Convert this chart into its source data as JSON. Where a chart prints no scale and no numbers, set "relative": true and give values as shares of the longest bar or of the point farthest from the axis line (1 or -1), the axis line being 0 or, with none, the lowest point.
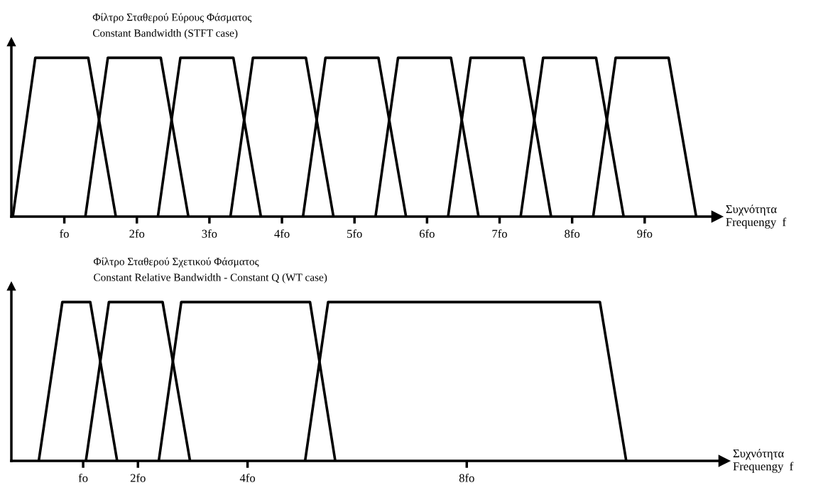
{
  "chart_data": [
    {
      "type": "line",
      "title": "Φίλτρο Σταθερού Εύρους Φάσματος",
      "subtitle": "Constant Bandwidth (STFT case)",
      "xlabel": "Συχνότητα\nFrequengy  f",
      "relative": true,
      "tick_labels": "x",
      "grid": false,
      "legend": false,
      "marker": "none",
      "line_style": "solid",
      "xlim": [
        0.27,
        10.0
      ],
      "xticks": [
        {
          "value": 1,
          "label": "fo"
        },
        {
          "value": 2,
          "label": "2fo"
        },
        {
          "value": 3,
          "label": "3fo"
        },
        {
          "value": 4,
          "label": "4fo"
        },
        {
          "value": 5,
          "label": "5fo"
        },
        {
          "value": 6,
          "label": "6fo"
        },
        {
          "value": 7,
          "label": "7fo"
        },
        {
          "value": 8,
          "label": "8fo"
        },
        {
          "value": 9,
          "label": "9fo"
        }
      ],
      "series": [
        {
          "color": "#000000",
          "x": [
            0.29,
            0.6,
            1.33,
            1.71
          ],
          "values": [
            0,
            1,
            1,
            0
          ]
        },
        {
          "color": "#000000",
          "x": [
            1.29,
            1.6,
            2.33,
            2.71
          ],
          "values": [
            0,
            1,
            1,
            0
          ]
        },
        {
          "color": "#000000",
          "x": [
            2.29,
            2.6,
            3.33,
            3.71
          ],
          "values": [
            0,
            1,
            1,
            0
          ]
        },
        {
          "color": "#000000",
          "x": [
            3.29,
            3.6,
            4.33,
            4.71
          ],
          "values": [
            0,
            1,
            1,
            0
          ]
        },
        {
          "color": "#000000",
          "x": [
            4.29,
            4.6,
            5.33,
            5.71
          ],
          "values": [
            0,
            1,
            1,
            0
          ]
        },
        {
          "color": "#000000",
          "x": [
            5.29,
            5.6,
            6.33,
            6.71
          ],
          "values": [
            0,
            1,
            1,
            0
          ]
        },
        {
          "color": "#000000",
          "x": [
            6.29,
            6.6,
            7.33,
            7.71
          ],
          "values": [
            0,
            1,
            1,
            0
          ]
        },
        {
          "color": "#000000",
          "x": [
            7.29,
            7.6,
            8.33,
            8.71
          ],
          "values": [
            0,
            1,
            1,
            0
          ]
        },
        {
          "color": "#000000",
          "x": [
            8.29,
            8.6,
            9.33,
            9.71
          ],
          "values": [
            0,
            1,
            1,
            0
          ]
        }
      ]
    },
    {
      "type": "line",
      "title": "Φίλτρο Σταθερού Σχετικού Φάσματος",
      "subtitle": "Constant Relative Bandwidth - Constant Q (WT case)",
      "xlabel": "Συχνότητα\nFrequengy  f",
      "relative": true,
      "tick_labels": "x",
      "grid": false,
      "legend": false,
      "marker": "none",
      "line_style": "solid",
      "xlim": [
        -0.31,
        12.7
      ],
      "xticks": [
        {
          "value": 1,
          "label": "fo"
        },
        {
          "value": 2,
          "label": "2fo"
        },
        {
          "value": 4,
          "label": "4fo"
        },
        {
          "value": 8,
          "label": "8fo"
        }
      ],
      "series": [
        {
          "color": "#000000",
          "x": [
            0.19,
            0.62,
            1.13,
            1.62
          ],
          "values": [
            0,
            1,
            1,
            0
          ]
        },
        {
          "color": "#000000",
          "x": [
            1.05,
            1.47,
            2.45,
            2.95
          ],
          "values": [
            0,
            1,
            1,
            0
          ]
        },
        {
          "color": "#000000",
          "x": [
            2.38,
            2.79,
            5.14,
            5.6
          ],
          "values": [
            0,
            1,
            1,
            0
          ]
        },
        {
          "color": "#000000",
          "x": [
            5.05,
            5.47,
            10.43,
            10.91
          ],
          "values": [
            0,
            1,
            1,
            0
          ]
        }
      ]
    }
  ]
}
